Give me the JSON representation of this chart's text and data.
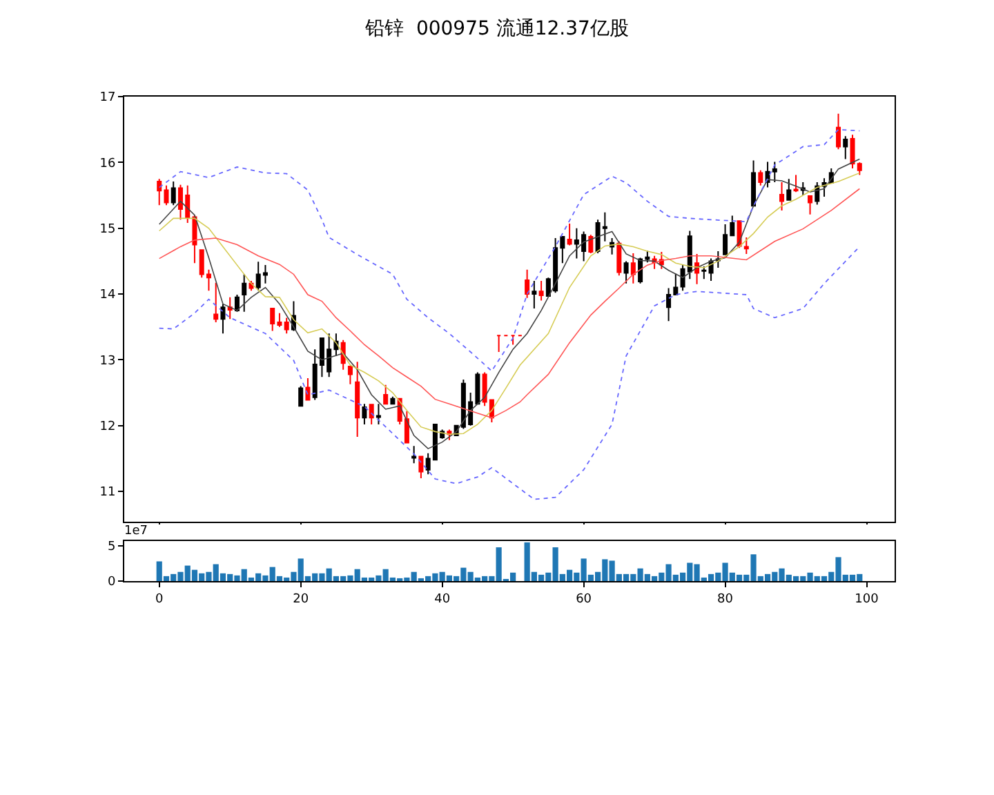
{
  "chart_data": [
    {
      "type": "candlestick",
      "title": "铅锌  000975 流通12.37亿股",
      "x": [
        0,
        1,
        2,
        3,
        4,
        5,
        6,
        7,
        8,
        9,
        10,
        11,
        12,
        13,
        14,
        15,
        16,
        17,
        18,
        19,
        20,
        21,
        22,
        23,
        24,
        25,
        26,
        27,
        28,
        29,
        30,
        31,
        32,
        33,
        34,
        35,
        36,
        37,
        38,
        39,
        40,
        41,
        42,
        43,
        44,
        45,
        46,
        47,
        48,
        49,
        50,
        51,
        52,
        53,
        54,
        55,
        56,
        57,
        58,
        59,
        60,
        61,
        62,
        63,
        64,
        65,
        66,
        67,
        68,
        69,
        70,
        71,
        72,
        73,
        74,
        75,
        76,
        77,
        78,
        79,
        80,
        81,
        82,
        83,
        84,
        85,
        86,
        87,
        88,
        89,
        90,
        91,
        92,
        93,
        94,
        95,
        96,
        97,
        98,
        99
      ],
      "ohlc": [
        [
          15.71,
          15.75,
          15.35,
          15.57
        ],
        [
          15.58,
          15.65,
          15.35,
          15.39
        ],
        [
          15.39,
          15.71,
          15.35,
          15.61
        ],
        [
          15.61,
          15.66,
          15.13,
          15.29
        ],
        [
          15.5,
          15.65,
          15.08,
          15.16
        ],
        [
          15.17,
          15.2,
          14.47,
          14.75
        ],
        [
          14.67,
          14.67,
          14.25,
          14.3
        ],
        [
          14.3,
          14.37,
          14.05,
          14.25
        ],
        [
          13.69,
          14.17,
          13.57,
          13.62
        ],
        [
          13.62,
          13.85,
          13.4,
          13.8
        ],
        [
          13.8,
          13.95,
          13.62,
          13.76
        ],
        [
          13.75,
          13.99,
          13.73,
          13.95
        ],
        [
          13.99,
          14.3,
          13.73,
          14.16
        ],
        [
          14.16,
          14.2,
          14.05,
          14.09
        ],
        [
          14.1,
          14.49,
          14.05,
          14.3
        ],
        [
          14.29,
          14.44,
          14.16,
          14.32
        ],
        [
          13.78,
          13.78,
          13.44,
          13.55
        ],
        [
          13.57,
          13.71,
          13.5,
          13.53
        ],
        [
          13.57,
          13.64,
          13.4,
          13.46
        ],
        [
          13.46,
          13.89,
          13.44,
          13.67
        ],
        [
          12.3,
          12.6,
          12.3,
          12.57
        ],
        [
          12.58,
          12.72,
          12.39,
          12.39
        ],
        [
          12.43,
          13.16,
          12.39,
          12.93
        ],
        [
          12.92,
          13.33,
          12.74,
          13.33
        ],
        [
          12.82,
          13.4,
          12.74,
          13.16
        ],
        [
          13.16,
          13.4,
          13.06,
          13.28
        ],
        [
          13.26,
          13.3,
          12.85,
          12.95
        ],
        [
          12.9,
          12.9,
          12.63,
          12.78
        ],
        [
          12.66,
          12.97,
          11.83,
          12.12
        ],
        [
          12.12,
          12.33,
          12.02,
          12.28
        ],
        [
          12.32,
          12.32,
          12.02,
          12.12
        ],
        [
          12.13,
          12.33,
          12.02,
          12.15
        ],
        [
          12.47,
          12.62,
          12.33,
          12.33
        ],
        [
          12.33,
          12.44,
          12.33,
          12.41
        ],
        [
          12.41,
          12.41,
          12.02,
          12.07
        ],
        [
          12.1,
          12.22,
          11.73,
          11.74
        ],
        [
          11.51,
          11.69,
          11.43,
          11.53
        ],
        [
          11.53,
          11.53,
          11.2,
          11.3
        ],
        [
          11.33,
          11.58,
          11.26,
          11.5
        ],
        [
          11.48,
          12.02,
          11.48,
          12.02
        ],
        [
          11.82,
          11.94,
          11.8,
          11.91
        ],
        [
          11.91,
          11.94,
          11.78,
          11.87
        ],
        [
          11.85,
          12.0,
          11.85,
          12.0
        ],
        [
          11.98,
          12.7,
          11.95,
          12.64
        ],
        [
          12.02,
          12.5,
          12.0,
          12.36
        ],
        [
          12.33,
          12.81,
          12.33,
          12.78
        ],
        [
          12.78,
          12.81,
          12.3,
          12.36
        ],
        [
          12.39,
          12.39,
          12.05,
          12.12
        ],
        [
          13.37,
          13.37,
          13.12,
          13.37
        ],
        [
          13.37,
          13.37,
          13.37,
          13.37
        ],
        [
          13.37,
          13.37,
          13.23,
          13.37
        ],
        [
          13.37,
          13.37,
          13.37,
          13.37
        ],
        [
          14.21,
          14.37,
          13.94,
          14.0
        ],
        [
          14.0,
          14.2,
          13.78,
          14.04
        ],
        [
          14.04,
          14.2,
          13.9,
          13.98
        ],
        [
          13.97,
          14.25,
          13.97,
          14.23
        ],
        [
          14.05,
          14.85,
          14.02,
          14.7
        ],
        [
          14.7,
          14.87,
          14.47,
          14.87
        ],
        [
          14.83,
          15.07,
          14.74,
          14.76
        ],
        [
          14.76,
          15.0,
          14.54,
          14.82
        ],
        [
          14.65,
          14.95,
          14.5,
          14.9
        ],
        [
          14.87,
          14.9,
          14.62,
          14.64
        ],
        [
          14.65,
          15.13,
          14.62,
          15.08
        ],
        [
          15.0,
          15.24,
          14.8,
          15.02
        ],
        [
          14.72,
          14.85,
          14.6,
          14.78
        ],
        [
          14.77,
          14.8,
          14.28,
          14.33
        ],
        [
          14.32,
          14.5,
          14.16,
          14.47
        ],
        [
          14.47,
          14.62,
          14.16,
          14.3
        ],
        [
          14.19,
          14.55,
          14.16,
          14.53
        ],
        [
          14.53,
          14.66,
          14.48,
          14.56
        ],
        [
          14.53,
          14.58,
          14.38,
          14.48
        ],
        [
          14.52,
          14.64,
          14.38,
          14.45
        ],
        [
          13.8,
          14.09,
          13.59,
          13.99
        ],
        [
          13.99,
          14.31,
          13.99,
          14.1
        ],
        [
          14.11,
          14.45,
          14.05,
          14.38
        ],
        [
          14.34,
          14.96,
          14.23,
          14.88
        ],
        [
          14.47,
          14.61,
          14.15,
          14.32
        ],
        [
          14.35,
          14.42,
          14.23,
          14.36
        ],
        [
          14.32,
          14.54,
          14.2,
          14.5
        ],
        [
          14.51,
          14.65,
          14.4,
          14.53
        ],
        [
          14.6,
          15.06,
          14.6,
          14.9
        ],
        [
          14.89,
          15.19,
          14.89,
          15.08
        ],
        [
          15.11,
          15.11,
          14.7,
          14.73
        ],
        [
          14.72,
          14.86,
          14.61,
          14.69
        ],
        [
          15.34,
          16.03,
          15.34,
          15.84
        ],
        [
          15.84,
          15.88,
          15.65,
          15.7
        ],
        [
          15.7,
          16.01,
          15.62,
          15.86
        ],
        [
          15.86,
          16.01,
          15.7,
          15.9
        ],
        [
          15.51,
          15.7,
          15.27,
          15.41
        ],
        [
          15.43,
          15.75,
          15.43,
          15.58
        ],
        [
          15.59,
          15.81,
          15.55,
          15.57
        ],
        [
          15.58,
          15.7,
          15.5,
          15.61
        ],
        [
          15.49,
          15.49,
          15.21,
          15.39
        ],
        [
          15.41,
          15.7,
          15.36,
          15.64
        ],
        [
          15.64,
          15.76,
          15.48,
          15.69
        ],
        [
          15.69,
          15.91,
          15.69,
          15.84
        ],
        [
          16.53,
          16.74,
          16.2,
          16.24
        ],
        [
          16.24,
          16.4,
          16.05,
          16.35
        ],
        [
          16.36,
          16.42,
          15.91,
          15.98
        ],
        [
          15.98,
          16.0,
          15.81,
          15.88
        ]
      ],
      "colors": [
        "#ff0000",
        "#ff0000",
        "#000000",
        "#ff0000",
        "#ff0000",
        "#ff0000",
        "#ff0000",
        "#ff0000",
        "#ff0000",
        "#000000",
        "#ff0000",
        "#000000",
        "#000000",
        "#ff0000",
        "#000000",
        "#000000",
        "#ff0000",
        "#ff0000",
        "#ff0000",
        "#000000",
        "#000000",
        "#ff0000",
        "#000000",
        "#000000",
        "#000000",
        "#000000",
        "#ff0000",
        "#ff0000",
        "#ff0000",
        "#000000",
        "#ff0000",
        "#000000",
        "#ff0000",
        "#000000",
        "#ff0000",
        "#ff0000",
        "#000000",
        "#ff0000",
        "#000000",
        "#000000",
        "#000000",
        "#ff0000",
        "#000000",
        "#000000",
        "#000000",
        "#000000",
        "#ff0000",
        "#ff0000",
        "#ff0000",
        "#ff0000",
        "#ff0000",
        "#ff0000",
        "#ff0000",
        "#000000",
        "#ff0000",
        "#000000",
        "#000000",
        "#000000",
        "#ff0000",
        "#000000",
        "#000000",
        "#ff0000",
        "#000000",
        "#000000",
        "#000000",
        "#ff0000",
        "#000000",
        "#ff0000",
        "#000000",
        "#000000",
        "#ff0000",
        "#ff0000",
        "#000000",
        "#000000",
        "#000000",
        "#000000",
        "#ff0000",
        "#000000",
        "#000000",
        "#000000",
        "#000000",
        "#000000",
        "#ff0000",
        "#ff0000",
        "#000000",
        "#ff0000",
        "#000000",
        "#000000",
        "#ff0000",
        "#000000",
        "#ff0000",
        "#000000",
        "#ff0000",
        "#000000",
        "#000000",
        "#000000",
        "#ff0000",
        "#000000",
        "#ff0000",
        "#ff0000"
      ],
      "series": [
        {
          "type": "line",
          "color": "#444444",
          "line_style": "solid",
          "x": [
            0,
            3,
            5,
            7,
            9,
            11,
            13,
            15,
            17,
            19,
            21,
            23,
            26,
            28,
            30,
            32,
            34,
            36,
            38,
            40,
            42,
            44,
            46,
            48,
            50,
            52,
            54,
            56,
            58,
            60,
            62,
            64,
            66,
            68,
            70,
            72,
            74,
            76,
            78,
            80,
            82,
            84,
            86,
            88,
            90,
            92,
            94,
            96,
            99
          ],
          "values": [
            15.06,
            15.41,
            15.2,
            14.55,
            13.85,
            13.75,
            13.95,
            14.1,
            13.85,
            13.5,
            13.13,
            13.0,
            13.1,
            12.85,
            12.47,
            12.25,
            12.3,
            11.85,
            11.65,
            11.75,
            11.91,
            12.23,
            12.43,
            12.81,
            13.16,
            13.4,
            13.75,
            14.16,
            14.58,
            14.79,
            14.87,
            14.95,
            14.61,
            14.51,
            14.5,
            14.36,
            14.25,
            14.4,
            14.5,
            14.55,
            14.79,
            15.34,
            15.74,
            15.72,
            15.64,
            15.55,
            15.6,
            15.9,
            16.05
          ]
        },
        {
          "type": "line",
          "color": "#d6cc55",
          "line_style": "solid",
          "x": [
            0,
            2,
            5,
            7,
            9,
            11,
            13,
            15,
            17,
            19,
            21,
            23,
            25,
            27,
            29,
            31,
            33,
            35,
            37,
            39,
            41,
            43,
            45,
            47,
            49,
            51,
            55,
            58,
            61,
            63,
            65,
            67,
            69,
            71,
            73,
            75,
            77,
            79,
            82,
            84,
            86,
            88,
            90,
            93,
            96,
            99
          ],
          "values": [
            14.96,
            15.15,
            15.15,
            15.0,
            14.72,
            14.44,
            14.16,
            13.96,
            13.95,
            13.61,
            13.41,
            13.47,
            13.26,
            12.92,
            12.81,
            12.68,
            12.5,
            12.23,
            11.98,
            11.91,
            11.87,
            11.88,
            12.02,
            12.23,
            12.57,
            12.92,
            13.4,
            14.1,
            14.58,
            14.73,
            14.76,
            14.72,
            14.65,
            14.6,
            14.47,
            14.42,
            14.4,
            14.5,
            14.72,
            14.92,
            15.17,
            15.34,
            15.44,
            15.62,
            15.71,
            15.84
          ]
        },
        {
          "type": "line",
          "color": "#ff5555",
          "line_style": "solid",
          "x": [
            0,
            3,
            5,
            8,
            11,
            14,
            17,
            19,
            21,
            23,
            25,
            27,
            29,
            31,
            33,
            35,
            37,
            39,
            41,
            43,
            45,
            47,
            49,
            51,
            52,
            55,
            58,
            61,
            63,
            65,
            67,
            69,
            71,
            73,
            75,
            78,
            83,
            87,
            91,
            95,
            99
          ],
          "values": [
            14.54,
            14.72,
            14.82,
            14.85,
            14.75,
            14.58,
            14.45,
            14.3,
            13.99,
            13.89,
            13.64,
            13.44,
            13.23,
            13.06,
            12.88,
            12.74,
            12.6,
            12.4,
            12.33,
            12.26,
            12.19,
            12.12,
            12.23,
            12.36,
            12.47,
            12.78,
            13.26,
            13.68,
            13.89,
            14.09,
            14.3,
            14.44,
            14.51,
            14.54,
            14.58,
            14.58,
            14.52,
            14.8,
            14.99,
            15.27,
            15.6
          ]
        },
        {
          "type": "line",
          "color": "#6666ff",
          "line_style": "dotted",
          "x": [
            0,
            3,
            7,
            11,
            15,
            18,
            21,
            23,
            24,
            28,
            33,
            35,
            38,
            41,
            44,
            47,
            50,
            52,
            56,
            60,
            64,
            66,
            69,
            72,
            75,
            78,
            83,
            84,
            87,
            91,
            94,
            96,
            99
          ],
          "values": [
            15.62,
            15.86,
            15.77,
            15.93,
            15.84,
            15.83,
            15.58,
            15.13,
            14.86,
            14.6,
            14.3,
            13.92,
            13.64,
            13.4,
            13.12,
            12.83,
            13.33,
            14.0,
            14.72,
            15.51,
            15.79,
            15.69,
            15.41,
            15.18,
            15.15,
            15.13,
            15.1,
            15.34,
            15.96,
            16.24,
            16.27,
            16.5,
            16.48
          ]
        },
        {
          "type": "line",
          "color": "#6666ff",
          "line_style": "dotted",
          "x": [
            0,
            2,
            5,
            7,
            10,
            15,
            19,
            21,
            24,
            29,
            33,
            36,
            39,
            42,
            45,
            47,
            50,
            53,
            56,
            60,
            64,
            66,
            70,
            73,
            76,
            83,
            84,
            87,
            91,
            94,
            99
          ],
          "values": [
            13.48,
            13.47,
            13.71,
            13.92,
            13.64,
            13.4,
            12.99,
            12.47,
            12.54,
            12.29,
            11.88,
            11.57,
            11.19,
            11.12,
            11.22,
            11.36,
            11.12,
            10.88,
            10.91,
            11.33,
            12.02,
            13.06,
            13.82,
            13.99,
            14.04,
            13.99,
            13.78,
            13.64,
            13.78,
            14.16,
            14.72
          ]
        }
      ],
      "xlim": [
        -4.95,
        103.95
      ],
      "xticks": [
        {
          "value": 0,
          "label": null
        },
        {
          "value": 20,
          "label": null
        },
        {
          "value": 40,
          "label": null
        },
        {
          "value": 60,
          "label": null
        },
        {
          "value": 80,
          "label": null
        },
        {
          "value": 100,
          "label": null
        }
      ],
      "ylim": [
        10.54,
        17
      ],
      "yticks": [
        11,
        12,
        13,
        14,
        15,
        16,
        17
      ],
      "tick_labels": "y"
    },
    {
      "type": "bar",
      "color": "#1f77b4",
      "annotations": [
        "1e7"
      ],
      "x": [
        0,
        1,
        2,
        3,
        4,
        5,
        6,
        7,
        8,
        9,
        10,
        11,
        12,
        13,
        14,
        15,
        16,
        17,
        18,
        19,
        20,
        21,
        22,
        23,
        24,
        25,
        26,
        27,
        28,
        29,
        30,
        31,
        32,
        33,
        34,
        35,
        36,
        37,
        38,
        39,
        40,
        41,
        42,
        43,
        44,
        45,
        46,
        47,
        48,
        49,
        50,
        51,
        52,
        53,
        54,
        55,
        56,
        57,
        58,
        59,
        60,
        61,
        62,
        63,
        64,
        65,
        66,
        67,
        68,
        69,
        70,
        71,
        72,
        73,
        74,
        75,
        76,
        77,
        78,
        79,
        80,
        81,
        82,
        83,
        84,
        85,
        86,
        87,
        88,
        89,
        90,
        91,
        92,
        93,
        94,
        95,
        96,
        97,
        98,
        99
      ],
      "values": [
        2.8,
        0.7,
        1.0,
        1.3,
        2.2,
        1.6,
        1.1,
        1.3,
        2.4,
        1.1,
        1.0,
        0.8,
        1.7,
        0.5,
        1.1,
        0.8,
        2.0,
        0.7,
        0.5,
        1.3,
        3.2,
        0.7,
        1.1,
        1.1,
        1.8,
        0.7,
        0.7,
        0.8,
        1.7,
        0.5,
        0.5,
        0.8,
        1.7,
        0.5,
        0.4,
        0.5,
        1.3,
        0.4,
        0.7,
        1.1,
        1.3,
        0.8,
        0.7,
        1.9,
        1.3,
        0.5,
        0.7,
        0.7,
        4.8,
        0.3,
        1.2,
        null,
        5.5,
        1.3,
        0.9,
        1.2,
        4.8,
        1.0,
        1.6,
        1.2,
        3.2,
        0.9,
        1.3,
        3.1,
        2.9,
        1.0,
        1.0,
        1.0,
        1.8,
        1.0,
        0.7,
        1.2,
        2.4,
        0.9,
        1.2,
        2.6,
        2.4,
        0.5,
        1.0,
        1.2,
        2.6,
        1.2,
        0.9,
        0.9,
        3.8,
        0.7,
        1.0,
        1.3,
        1.8,
        0.9,
        0.7,
        0.7,
        1.2,
        0.7,
        0.7,
        1.3,
        3.4,
        0.9,
        0.9,
        1.0
      ],
      "xlim": [
        -4.95,
        103.95
      ],
      "xticks": [
        0,
        20,
        40,
        60,
        80,
        100
      ],
      "ylim": [
        0,
        5.69
      ],
      "yticks": [
        0,
        5
      ]
    }
  ]
}
